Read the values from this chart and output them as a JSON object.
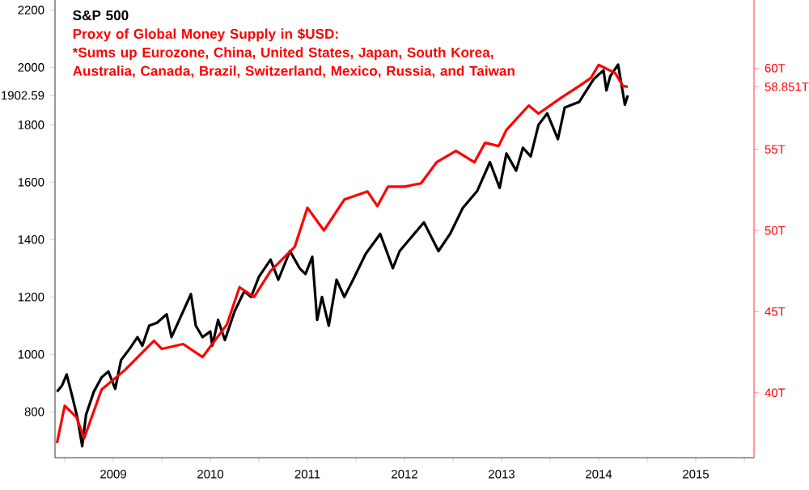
{
  "chart_data": {
    "type": "line",
    "legend": "top left",
    "xlim": [
      2008.9,
      2016.1
    ],
    "xticks": [
      {
        "value": 2009,
        "label": null
      },
      {
        "value": 2009.5,
        "label": "2009"
      },
      {
        "value": 2010,
        "label": null
      },
      {
        "value": 2010.5,
        "label": "2010"
      },
      {
        "value": 2011,
        "label": null
      },
      {
        "value": 2011.5,
        "label": "2011"
      },
      {
        "value": 2012,
        "label": null
      },
      {
        "value": 2012.5,
        "label": "2012"
      },
      {
        "value": 2013,
        "label": null
      },
      {
        "value": 2013.5,
        "label": "2013"
      },
      {
        "value": 2014,
        "label": null
      },
      {
        "value": 2014.5,
        "label": "2014"
      },
      {
        "value": 2015,
        "label": null
      },
      {
        "value": 2015.5,
        "label": "2015"
      },
      {
        "value": 2016,
        "label": null
      }
    ],
    "ylim": [
      640,
      2235
    ],
    "yticks": [
      800,
      1000,
      1200,
      1400,
      1600,
      1800,
      {
        "value": 1902.59,
        "label": "1902.59"
      },
      2000,
      2200
    ],
    "y2lim": [
      36,
      64.2
    ],
    "y2ticks": [
      {
        "value": 40,
        "label": "40T"
      },
      {
        "value": 45,
        "label": "45T"
      },
      {
        "value": 50,
        "label": "50T"
      },
      {
        "value": 55,
        "label": "55T"
      },
      {
        "value": 58.851,
        "label": "58.851T"
      },
      {
        "value": 60,
        "label": "60T"
      }
    ],
    "annotations": [
      "*Sums up Eurozone, China, United States, Japan, South Korea, Australia, Canada, Brazil, Switzerland, Mexico, Russia, and Taiwan"
    ],
    "series": [
      {
        "name": "S&P 500",
        "color": "#000000",
        "x": [
          2008.92,
          2008.97,
          2009.02,
          2009.08,
          2009.13,
          2009.18,
          2009.22,
          2009.3,
          2009.38,
          2009.45,
          2009.52,
          2009.58,
          2009.67,
          2009.75,
          2009.8,
          2009.87,
          2009.95,
          2010.05,
          2010.1,
          2010.18,
          2010.3,
          2010.35,
          2010.42,
          2010.5,
          2010.52,
          2010.58,
          2010.65,
          2010.75,
          2010.85,
          2010.92,
          2011.0,
          2011.12,
          2011.2,
          2011.32,
          2011.42,
          2011.48,
          2011.55,
          2011.6,
          2011.65,
          2011.72,
          2011.8,
          2011.88,
          2011.97,
          2012.1,
          2012.25,
          2012.38,
          2012.45,
          2012.55,
          2012.7,
          2012.85,
          2012.97,
          2013.1,
          2013.25,
          2013.38,
          2013.48,
          2013.55,
          2013.65,
          2013.72,
          2013.8,
          2013.88,
          2013.97,
          2014.08,
          2014.15,
          2014.3,
          2014.45,
          2014.55,
          2014.58,
          2014.62,
          2014.7,
          2014.77,
          2014.8
        ],
        "values": [
          870,
          890,
          930,
          850,
          780,
          680,
          790,
          870,
          920,
          940,
          880,
          980,
          1020,
          1060,
          1030,
          1100,
          1110,
          1140,
          1060,
          1120,
          1210,
          1100,
          1060,
          1080,
          1030,
          1120,
          1050,
          1150,
          1220,
          1200,
          1270,
          1330,
          1260,
          1360,
          1300,
          1280,
          1340,
          1120,
          1200,
          1100,
          1260,
          1200,
          1260,
          1350,
          1420,
          1300,
          1360,
          1400,
          1460,
          1360,
          1420,
          1510,
          1570,
          1670,
          1580,
          1700,
          1640,
          1720,
          1690,
          1800,
          1840,
          1750,
          1860,
          1880,
          1960,
          1990,
          1920,
          1970,
          2010,
          1870,
          1902.59
        ]
      },
      {
        "name": "Proxy of Global Money Supply in $USD:",
        "color": "#ff0000",
        "axis": "y2",
        "x": [
          2008.92,
          2009.0,
          2009.12,
          2009.2,
          2009.38,
          2009.62,
          2009.92,
          2010.0,
          2010.22,
          2010.42,
          2010.67,
          2010.8,
          2010.95,
          2011.12,
          2011.37,
          2011.5,
          2011.67,
          2011.88,
          2012.12,
          2012.22,
          2012.33,
          2012.5,
          2012.67,
          2012.83,
          2013.03,
          2013.22,
          2013.33,
          2013.47,
          2013.55,
          2013.78,
          2013.88,
          2014.12,
          2014.3,
          2014.42,
          2014.5,
          2014.67,
          2014.75,
          2014.8
        ],
        "values": [
          36.9,
          39.2,
          38.5,
          37.2,
          40.2,
          41.4,
          43.2,
          42.7,
          43.0,
          42.2,
          44.2,
          46.5,
          45.9,
          47.5,
          49.0,
          51.4,
          50.0,
          51.9,
          52.4,
          51.5,
          52.7,
          52.7,
          52.9,
          54.2,
          54.9,
          54.2,
          55.4,
          55.2,
          56.2,
          57.7,
          57.2,
          58.2,
          58.9,
          59.4,
          60.2,
          59.7,
          58.9,
          58.851
        ]
      }
    ]
  }
}
